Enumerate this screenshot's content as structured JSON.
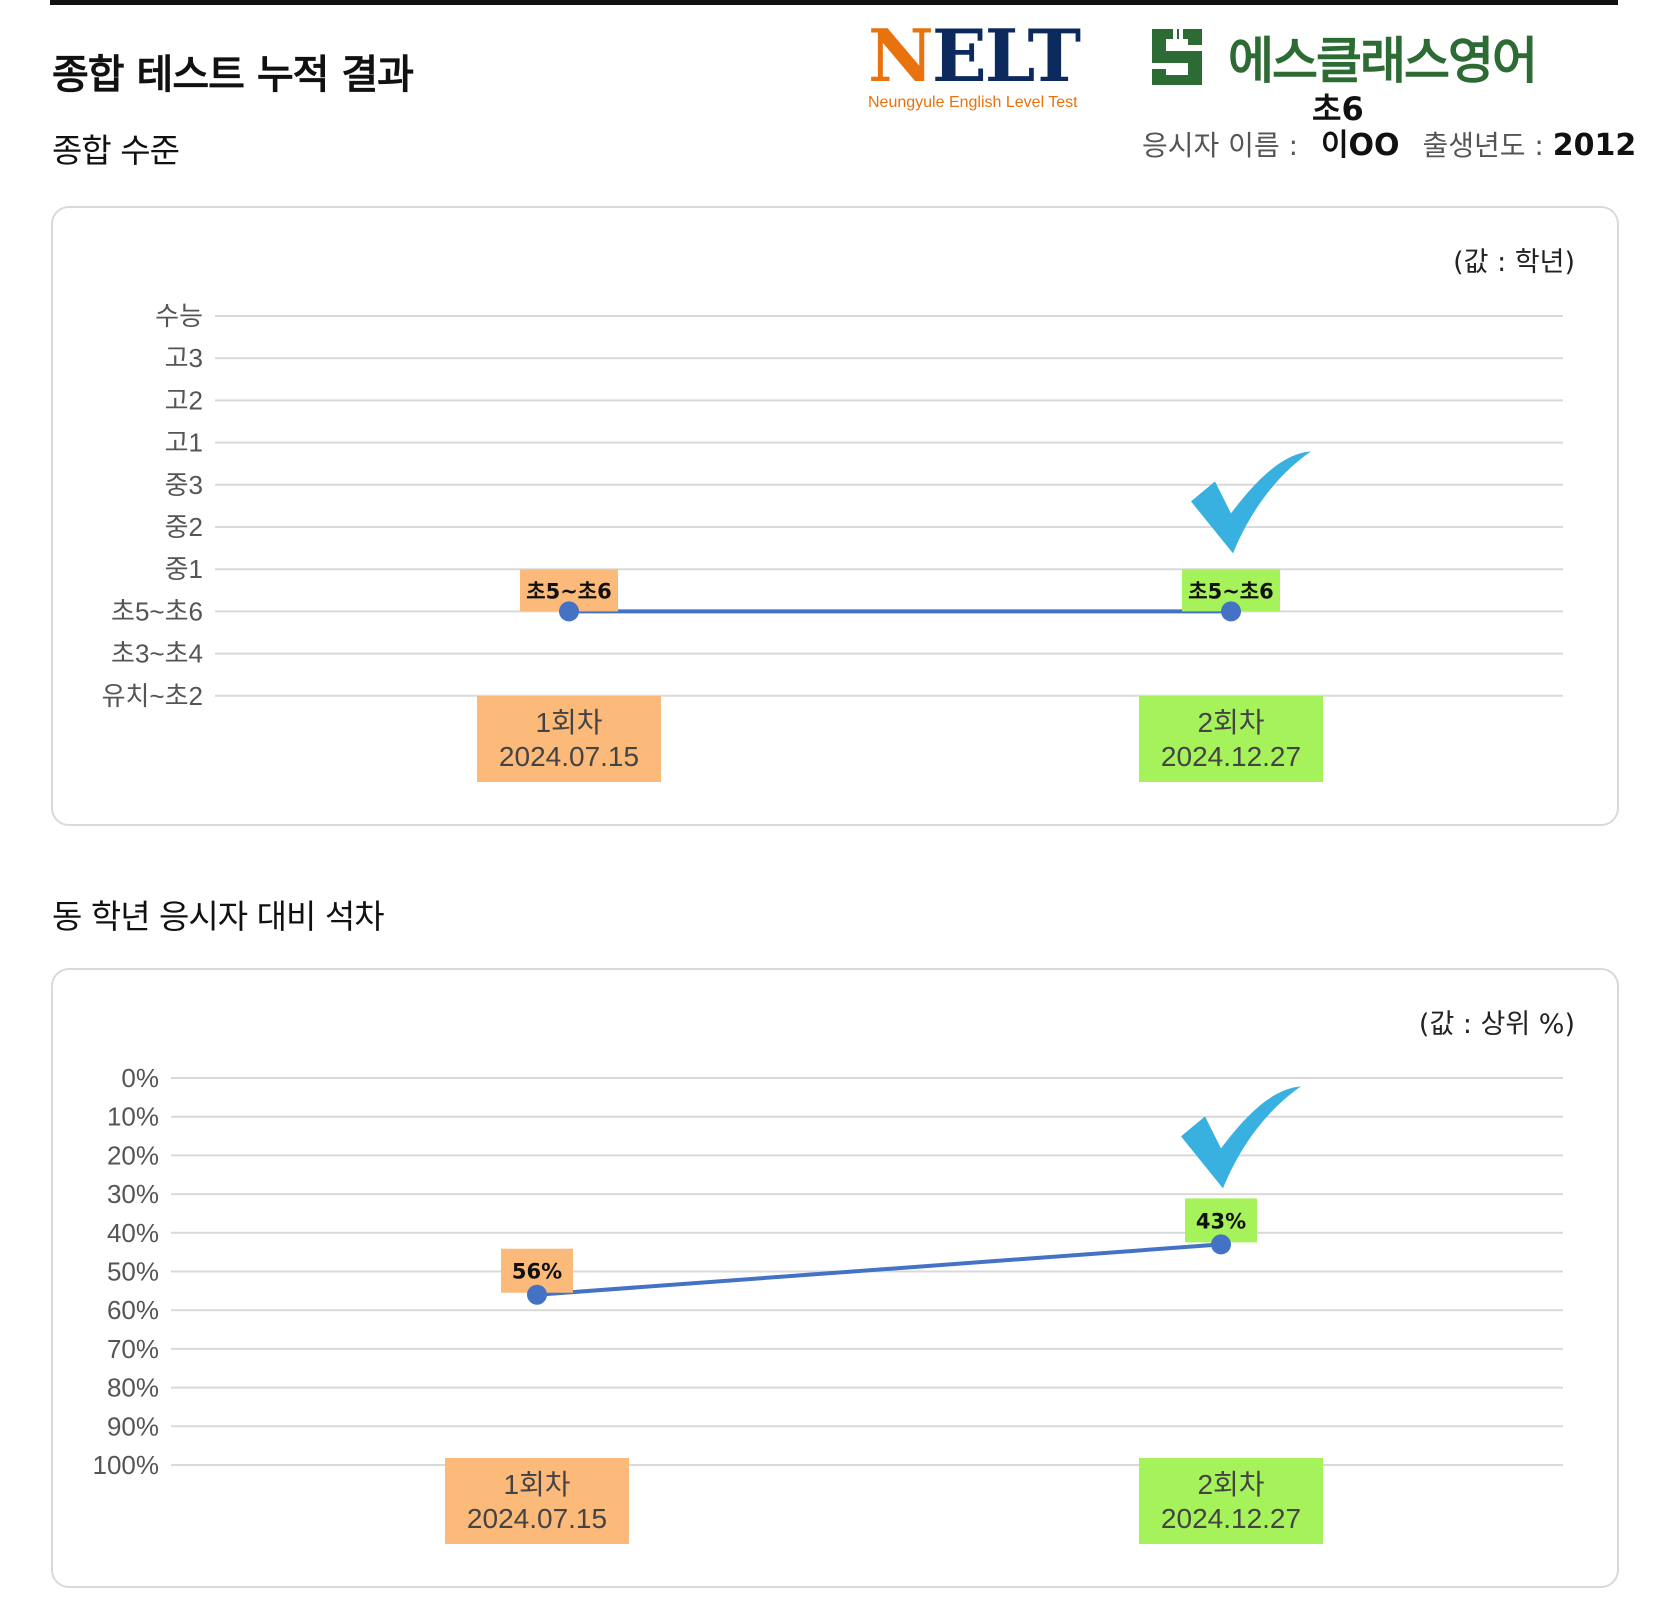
{
  "header": {
    "title": "종합 테스트 누적 결과",
    "nelt_logo": {
      "word": "NELT",
      "subtitle": "Neungyule English Level Test"
    },
    "academy_name": "에스클래스영어",
    "current_level": "초6",
    "candidate_label": "응시자 이름 :",
    "candidate_name": "이OO",
    "birth_year_label": "출생년도 :",
    "birth_year": "2012"
  },
  "colors": {
    "line": "#4472c4",
    "first_attempt": "#fbb97a",
    "second_attempt": "#a6f25a",
    "check": "#38b1e0",
    "grid": "#d9d9d9"
  },
  "icons": {
    "check_mark": "check-icon"
  },
  "sections": {
    "overall_level_title": "종합 수준",
    "percentile_title": "동 학년 응시자 대비 석차"
  },
  "chart_data": [
    {
      "type": "line",
      "unit_label": "(값 : 학년)",
      "y_categories": [
        "수능",
        "고3",
        "고2",
        "고1",
        "중3",
        "중2",
        "중1",
        "초5~초6",
        "초3~초4",
        "유치~초2"
      ],
      "categories": [
        {
          "round": "1회차",
          "date": "2024.07.15"
        },
        {
          "round": "2회차",
          "date": "2024.12.27"
        }
      ],
      "values": [
        "초5~초6",
        "초5~초6"
      ],
      "data_labels": [
        "초5~초6",
        "초5~초6"
      ],
      "highlight": "2회차",
      "grid": true
    },
    {
      "type": "line",
      "unit_label": "(값 : 상위 %)",
      "y_ticks": [
        "0%",
        "10%",
        "20%",
        "30%",
        "40%",
        "50%",
        "60%",
        "70%",
        "80%",
        "90%",
        "100%"
      ],
      "ylim": [
        0,
        100
      ],
      "y_inverted": true,
      "categories": [
        {
          "round": "1회차",
          "date": "2024.07.15"
        },
        {
          "round": "2회차",
          "date": "2024.12.27"
        }
      ],
      "values": [
        56,
        43
      ],
      "data_labels": [
        "56%",
        "43%"
      ],
      "highlight": "2회차",
      "grid": true
    }
  ]
}
